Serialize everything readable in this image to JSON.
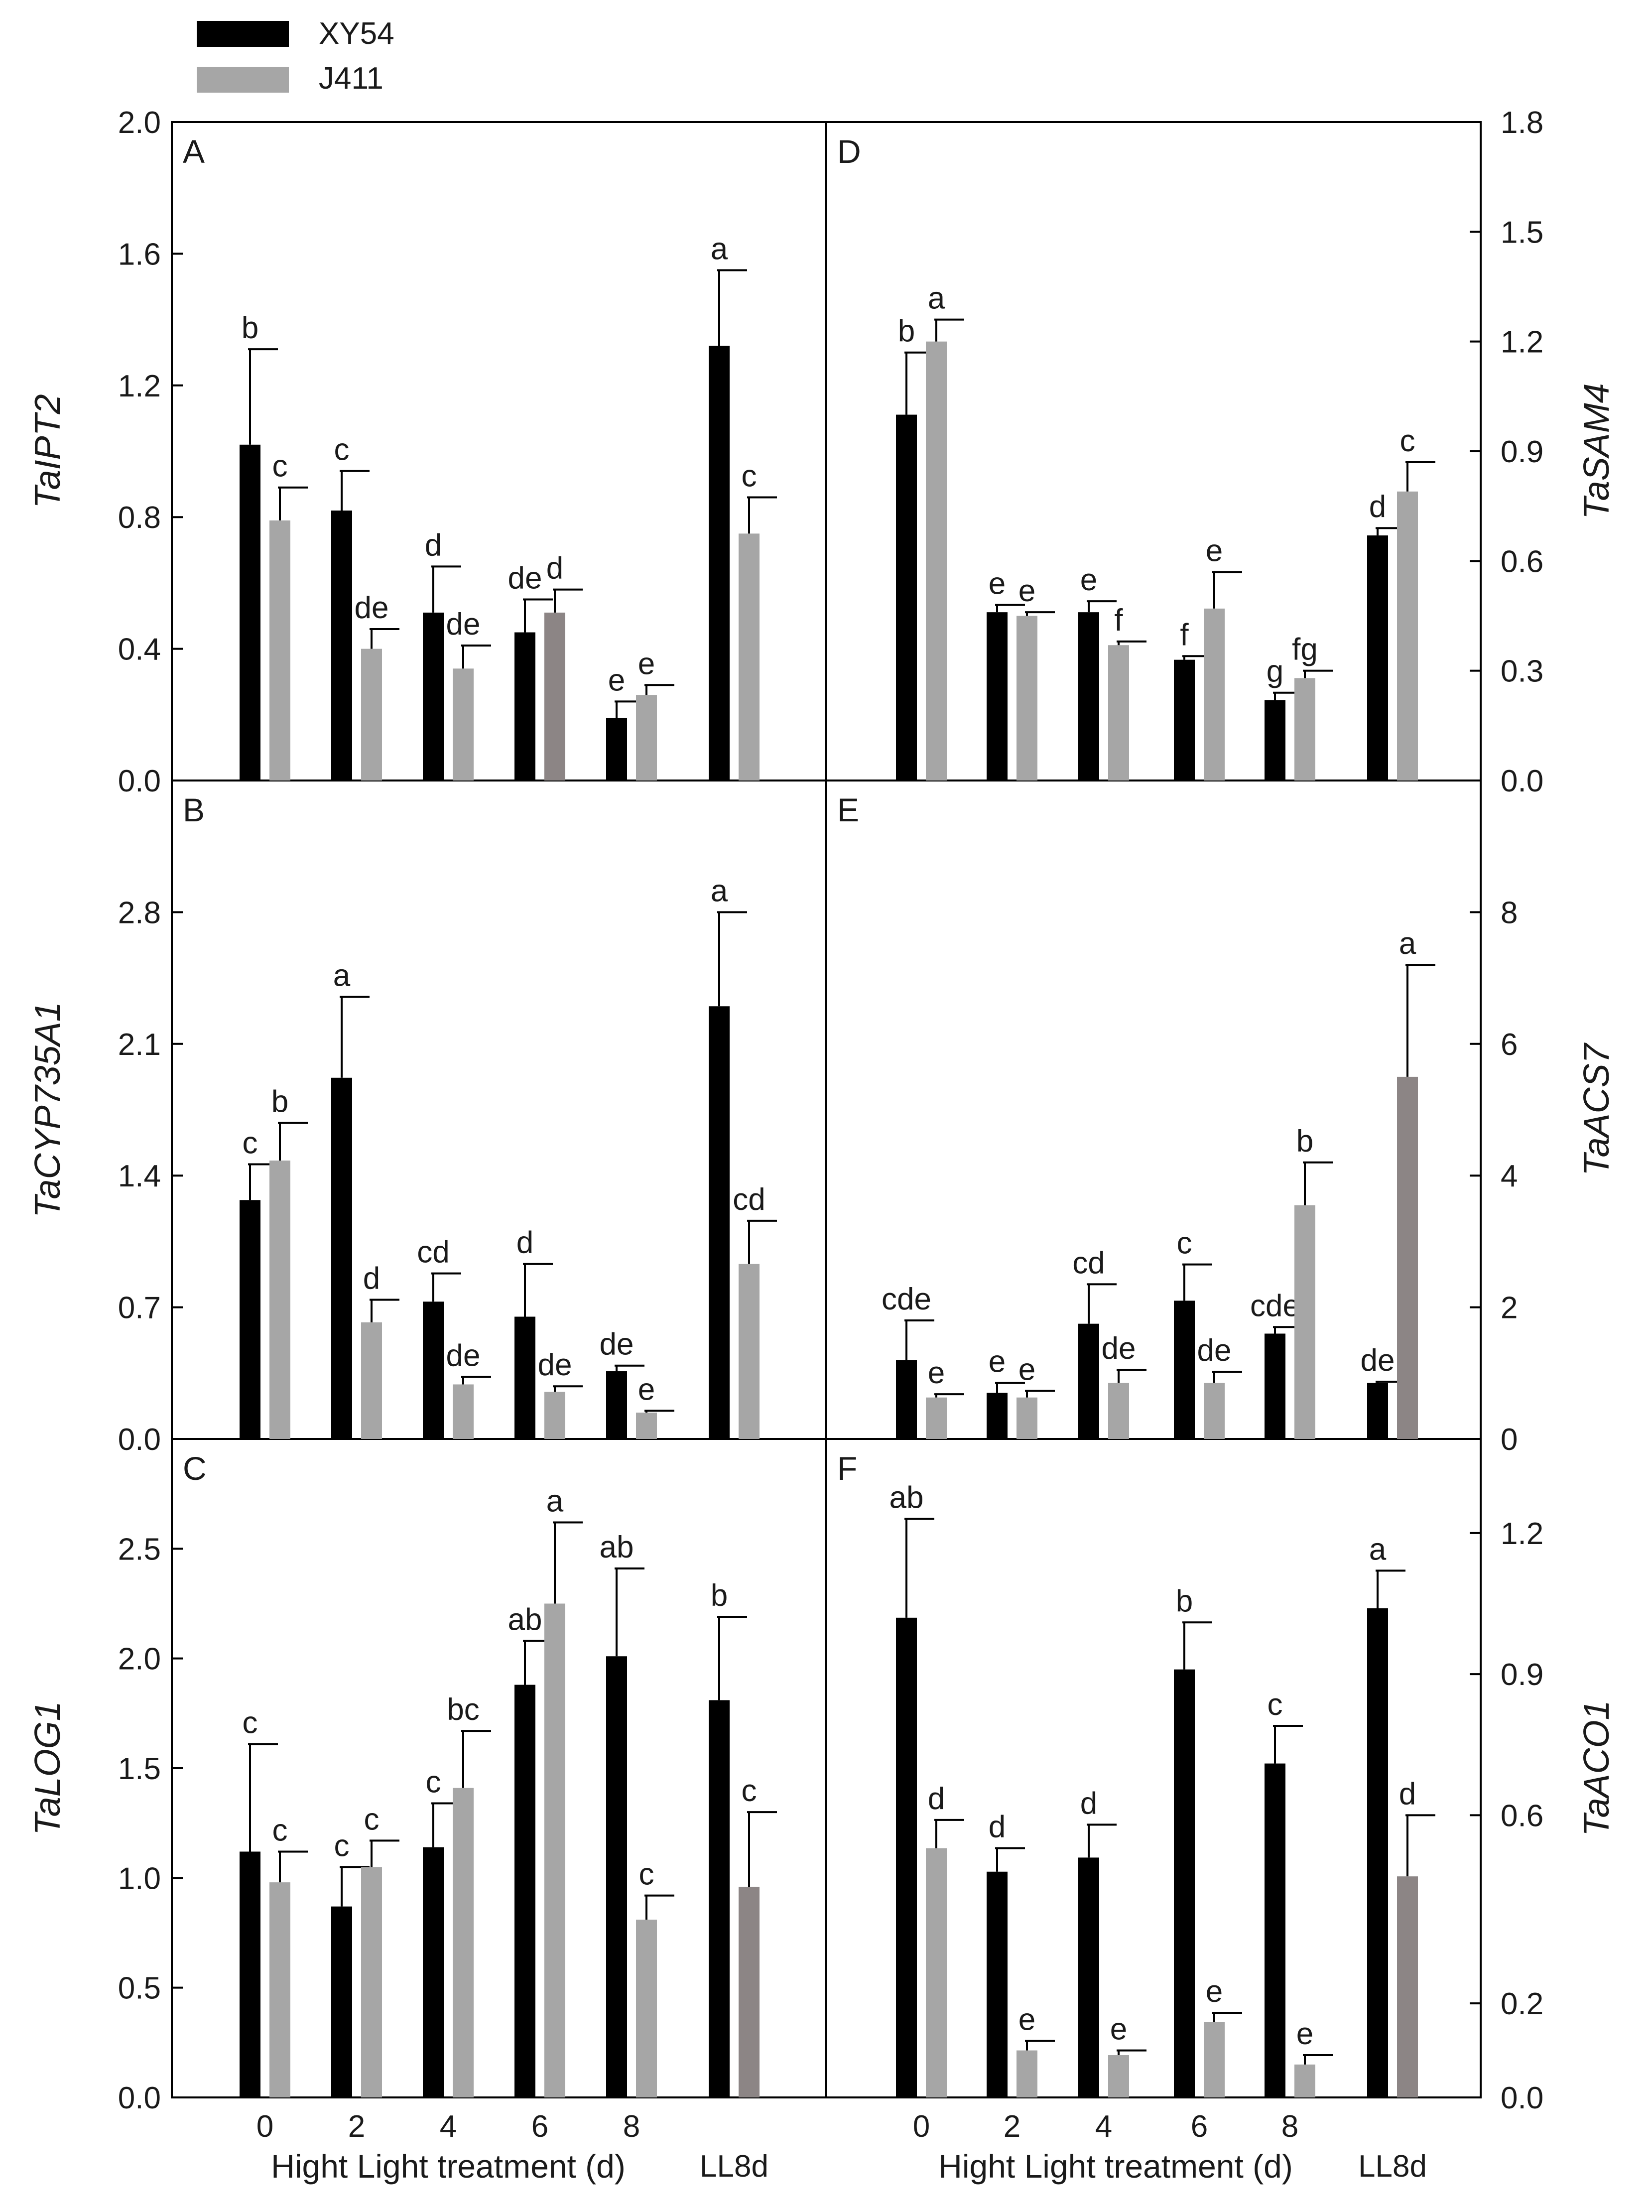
{
  "legend": {
    "entries": [
      {
        "name": "XY54",
        "color": "#000000"
      },
      {
        "name": "J411",
        "color": "#a6a6a6"
      }
    ]
  },
  "colors": {
    "xy54": "#000000",
    "j411": "#a6a6a6",
    "highlight": "#8c8585"
  },
  "x_axis": {
    "left": {
      "label": "Hight Light treatment (d)",
      "ticks": [
        "0",
        "2",
        "4",
        "6",
        "8"
      ],
      "extra": "LL8d"
    },
    "right": {
      "label": "Hight Light treatment (d)",
      "ticks": [
        "0",
        "2",
        "4",
        "6",
        "8"
      ],
      "extra": "LL8d"
    }
  },
  "chart_data": [
    {
      "panel": "A",
      "type": "bar",
      "ylabel": "TaIPT2",
      "axis_side": "left",
      "ylim": [
        0,
        2.0
      ],
      "ticks": [
        0.0,
        0.4,
        0.8,
        1.2,
        1.6,
        2.0
      ],
      "tick_labels": [
        "0.0",
        "0.4",
        "0.8",
        "1.2",
        "1.6",
        "2.0"
      ],
      "categories": [
        "0",
        "2",
        "4",
        "6",
        "8",
        "LL8d"
      ],
      "series": [
        {
          "name": "XY54",
          "values": [
            1.02,
            0.82,
            0.51,
            0.45,
            0.19,
            1.32
          ],
          "errors": [
            0.29,
            0.12,
            0.14,
            0.1,
            0.05,
            0.23
          ],
          "letters": [
            "b",
            "c",
            "d",
            "de",
            "e",
            "a"
          ]
        },
        {
          "name": "J411",
          "values": [
            0.79,
            0.4,
            0.34,
            0.51,
            0.26,
            0.75
          ],
          "errors": [
            0.1,
            0.06,
            0.07,
            0.07,
            0.03,
            0.11
          ],
          "letters": [
            "c",
            "de",
            "de",
            "d",
            "e",
            "c"
          ],
          "highlight": [
            3
          ]
        }
      ]
    },
    {
      "panel": "B",
      "type": "bar",
      "ylabel": "TaCYP735A1",
      "axis_side": "left",
      "ylim": [
        0,
        3.5
      ],
      "ticks": [
        0.0,
        0.7,
        1.4,
        2.1,
        2.8
      ],
      "tick_labels": [
        "0.0",
        "0.7",
        "1.4",
        "2.1",
        "2.8"
      ],
      "categories": [
        "0",
        "2",
        "4",
        "6",
        "8",
        "LL8d"
      ],
      "series": [
        {
          "name": "XY54",
          "values": [
            1.27,
            1.92,
            0.73,
            0.65,
            0.36,
            2.3
          ],
          "errors": [
            0.19,
            0.43,
            0.15,
            0.28,
            0.03,
            0.5
          ],
          "letters": [
            "c",
            "a",
            "cd",
            "d",
            "de",
            "a"
          ]
        },
        {
          "name": "J411",
          "values": [
            1.48,
            0.62,
            0.29,
            0.25,
            0.14,
            0.93
          ],
          "errors": [
            0.2,
            0.12,
            0.04,
            0.03,
            0.01,
            0.23
          ],
          "letters": [
            "b",
            "d",
            "de",
            "de",
            "e",
            "cd"
          ]
        }
      ]
    },
    {
      "panel": "C",
      "type": "bar",
      "ylabel": "TaLOG1",
      "axis_side": "left",
      "ylim": [
        0,
        3.0
      ],
      "ticks": [
        0.0,
        0.5,
        1.0,
        1.5,
        2.0,
        2.5
      ],
      "tick_labels": [
        "0.0",
        "0.5",
        "1.0",
        "1.5",
        "2.0",
        "2.5"
      ],
      "categories": [
        "0",
        "2",
        "4",
        "6",
        "8",
        "LL8d"
      ],
      "series": [
        {
          "name": "XY54",
          "values": [
            1.12,
            0.87,
            1.14,
            1.88,
            2.01,
            1.81
          ],
          "errors": [
            0.49,
            0.18,
            0.2,
            0.2,
            0.4,
            0.38
          ],
          "letters": [
            "c",
            "c",
            "c",
            "ab",
            "ab",
            "b"
          ]
        },
        {
          "name": "J411",
          "values": [
            0.98,
            1.05,
            1.41,
            2.25,
            0.81,
            0.96
          ],
          "errors": [
            0.14,
            0.12,
            0.26,
            0.37,
            0.11,
            0.34
          ],
          "letters": [
            "c",
            "c",
            "bc",
            "a",
            "c",
            "c"
          ],
          "highlight": [
            5
          ]
        }
      ]
    },
    {
      "panel": "D",
      "type": "bar",
      "ylabel": "TaSAM4",
      "axis_side": "right",
      "ylim": [
        0,
        1.8
      ],
      "ticks": [
        0.0,
        0.3,
        0.6,
        0.9,
        1.2,
        1.5,
        1.8
      ],
      "tick_labels": [
        "0.0",
        "0.3",
        "0.6",
        "0.9",
        "1.2",
        "1.5",
        "1.8"
      ],
      "categories": [
        "0",
        "2",
        "4",
        "6",
        "8",
        "LL8d"
      ],
      "series": [
        {
          "name": "XY54",
          "values": [
            1.0,
            0.46,
            0.46,
            0.33,
            0.22,
            0.67
          ],
          "errors": [
            0.17,
            0.02,
            0.03,
            0.01,
            0.02,
            0.02
          ],
          "letters": [
            "b",
            "e",
            "e",
            "f",
            "g",
            "d"
          ]
        },
        {
          "name": "J411",
          "values": [
            1.2,
            0.45,
            0.37,
            0.47,
            0.28,
            0.79
          ],
          "errors": [
            0.06,
            0.01,
            0.01,
            0.1,
            0.02,
            0.08
          ],
          "letters": [
            "a",
            "e",
            "f",
            "e",
            "fg",
            "c"
          ]
        }
      ]
    },
    {
      "panel": "E",
      "type": "bar",
      "ylabel": "TaACS7",
      "axis_side": "right",
      "ylim": [
        0,
        10
      ],
      "ticks": [
        0,
        2,
        4,
        6,
        8
      ],
      "tick_labels": [
        "0",
        "2",
        "4",
        "6",
        "8"
      ],
      "categories": [
        "0",
        "2",
        "4",
        "6",
        "8",
        "LL8d"
      ],
      "series": [
        {
          "name": "XY54",
          "values": [
            1.2,
            0.7,
            1.75,
            2.1,
            1.6,
            0.85
          ],
          "errors": [
            0.6,
            0.15,
            0.6,
            0.55,
            0.1,
            0.02
          ],
          "letters": [
            "cde",
            "e",
            "cd",
            "c",
            "cde",
            "de"
          ]
        },
        {
          "name": "J411",
          "values": [
            0.63,
            0.63,
            0.85,
            0.85,
            3.55,
            5.5
          ],
          "errors": [
            0.05,
            0.1,
            0.2,
            0.17,
            0.65,
            1.7
          ],
          "letters": [
            "e",
            "e",
            "de",
            "de",
            "b",
            "a"
          ],
          "highlight": [
            5
          ]
        }
      ]
    },
    {
      "panel": "F",
      "type": "bar",
      "ylabel": "TaACO1",
      "axis_side": "right",
      "ylim": [
        0,
        1.4
      ],
      "ticks": [
        0.0,
        0.2,
        0.6,
        0.9,
        1.2
      ],
      "tick_labels": [
        "0.0",
        "0.2",
        "0.6",
        "0.9",
        "1.2"
      ],
      "categories": [
        "0",
        "2",
        "4",
        "6",
        "8",
        "LL8d"
      ],
      "series": [
        {
          "name": "XY54",
          "values": [
            1.02,
            0.48,
            0.51,
            0.91,
            0.71,
            1.04
          ],
          "errors": [
            0.21,
            0.05,
            0.07,
            0.1,
            0.08,
            0.08
          ],
          "letters": [
            "ab",
            "d",
            "d",
            "b",
            "c",
            "a"
          ]
        },
        {
          "name": "J411",
          "values": [
            0.53,
            0.1,
            0.09,
            0.16,
            0.07,
            0.47
          ],
          "errors": [
            0.06,
            0.02,
            0.01,
            0.02,
            0.02,
            0.13
          ],
          "letters": [
            "d",
            "e",
            "e",
            "e",
            "e",
            "d"
          ],
          "highlight": [
            5
          ]
        }
      ]
    }
  ]
}
